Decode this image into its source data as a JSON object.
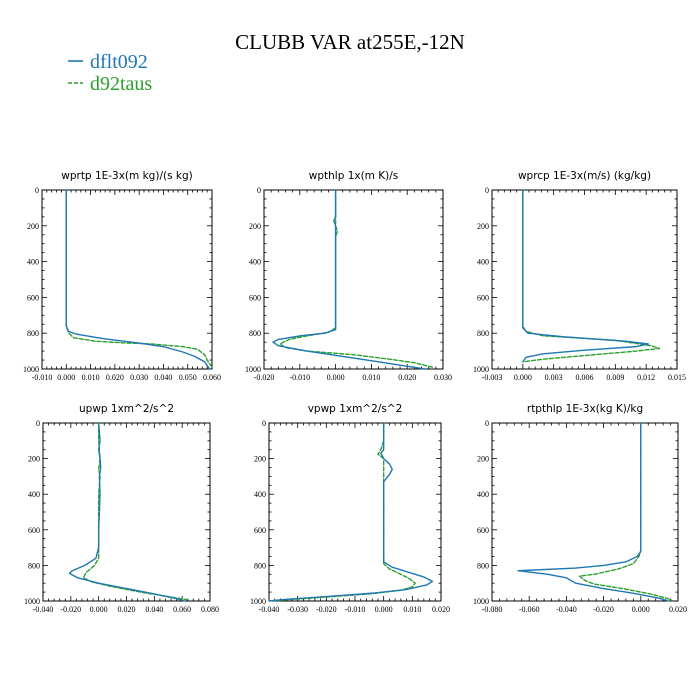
{
  "chart_data": {
    "type": "line",
    "title": "CLUBB VAR at255E,-12N",
    "legend": {
      "placement": "top-left",
      "entries": [
        {
          "name": "dflt092",
          "color": "#1f77b4",
          "style": "solid"
        },
        {
          "name": "d92taus",
          "color": "#2ca02c",
          "style": "dashed"
        }
      ]
    },
    "grid": false,
    "panels": [
      {
        "title": "wprtp  1E-3x(m kg)/(s kg)",
        "xlim": [
          -0.01,
          0.06
        ],
        "ylim": [
          1000,
          0
        ],
        "xticks": [
          "-0.010",
          "0.000",
          "0.010",
          "0.020",
          "0.030",
          "0.040",
          "0.050",
          "0.060"
        ],
        "yticks": [
          "0",
          "200",
          "400",
          "600",
          "800",
          "1000"
        ],
        "series": [
          {
            "name": "dflt092",
            "points": [
              [
                0,
                0
              ],
              [
                0,
                200
              ],
              [
                0,
                400
              ],
              [
                0,
                600
              ],
              [
                0,
                760
              ],
              [
                0.001,
                790
              ],
              [
                0.004,
                805
              ],
              [
                0.015,
                830
              ],
              [
                0.03,
                855
              ],
              [
                0.04,
                875
              ],
              [
                0.048,
                905
              ],
              [
                0.053,
                930
              ],
              [
                0.057,
                960
              ],
              [
                0.059,
                1000
              ]
            ]
          },
          {
            "name": "d92taus",
            "points": [
              [
                0,
                0
              ],
              [
                0,
                200
              ],
              [
                0,
                400
              ],
              [
                0,
                600
              ],
              [
                0,
                760
              ],
              [
                0.001,
                800
              ],
              [
                0.003,
                825
              ],
              [
                0.012,
                845
              ],
              [
                0.025,
                855
              ],
              [
                0.035,
                860
              ],
              [
                0.048,
                875
              ],
              [
                0.054,
                890
              ],
              [
                0.057,
                920
              ],
              [
                0.058,
                950
              ],
              [
                0.06,
                990
              ]
            ]
          }
        ]
      },
      {
        "title": "wpthlp  1x(m K)/s",
        "xlim": [
          -0.02,
          0.03
        ],
        "ylim": [
          1000,
          0
        ],
        "xticks": [
          "-0.020",
          "-0.010",
          "0.000",
          "0.010",
          "0.020",
          "0.030"
        ],
        "yticks": [
          "0",
          "200",
          "400",
          "600",
          "800",
          "1000"
        ],
        "series": [
          {
            "name": "dflt092",
            "points": [
              [
                0,
                0
              ],
              [
                0,
                150
              ],
              [
                -0.0005,
                170
              ],
              [
                0,
                200
              ],
              [
                0,
                250
              ],
              [
                0,
                400
              ],
              [
                0,
                600
              ],
              [
                0,
                780
              ],
              [
                -0.003,
                800
              ],
              [
                -0.01,
                815
              ],
              [
                -0.016,
                835
              ],
              [
                -0.0175,
                850
              ],
              [
                -0.016,
                870
              ],
              [
                -0.008,
                900
              ],
              [
                0.002,
                930
              ],
              [
                0.012,
                960
              ],
              [
                0.02,
                985
              ],
              [
                0.025,
                1000
              ]
            ]
          },
          {
            "name": "d92taus",
            "points": [
              [
                0,
                0
              ],
              [
                0,
                200
              ],
              [
                0.0005,
                230
              ],
              [
                0,
                260
              ],
              [
                0,
                400
              ],
              [
                0,
                600
              ],
              [
                0,
                770
              ],
              [
                -0.002,
                795
              ],
              [
                -0.008,
                815
              ],
              [
                -0.013,
                835
              ],
              [
                -0.0155,
                860
              ],
              [
                -0.014,
                880
              ],
              [
                -0.008,
                900
              ],
              [
                0.005,
                920
              ],
              [
                0.015,
                945
              ],
              [
                0.022,
                965
              ],
              [
                0.027,
                990
              ]
            ]
          }
        ]
      },
      {
        "title": "wprcp  1E-3x(m/s) (kg/kg)",
        "xlim": [
          -0.003,
          0.015
        ],
        "ylim": [
          1000,
          0
        ],
        "xticks": [
          "-0.003",
          "0.000",
          "0.003",
          "0.006",
          "0.009",
          "0.012",
          "0.015"
        ],
        "yticks": [
          "0",
          "200",
          "400",
          "600",
          "800",
          "1000"
        ],
        "series": [
          {
            "name": "dflt092",
            "points": [
              [
                0,
                0
              ],
              [
                0,
                200
              ],
              [
                0,
                400
              ],
              [
                0,
                600
              ],
              [
                0,
                770
              ],
              [
                0.0005,
                800
              ],
              [
                0.004,
                820
              ],
              [
                0.01,
                845
              ],
              [
                0.0122,
                860
              ],
              [
                0.011,
                875
              ],
              [
                0.006,
                895
              ],
              [
                0.002,
                915
              ],
              [
                0.0003,
                935
              ],
              [
                0,
                960
              ]
            ]
          },
          {
            "name": "d92taus",
            "points": [
              [
                0,
                0
              ],
              [
                0,
                200
              ],
              [
                0,
                400
              ],
              [
                0,
                600
              ],
              [
                0,
                760
              ],
              [
                0.0003,
                790
              ],
              [
                0.002,
                815
              ],
              [
                0.009,
                840
              ],
              [
                0.0125,
                870
              ],
              [
                0.0133,
                885
              ],
              [
                0.011,
                900
              ],
              [
                0.006,
                925
              ],
              [
                0.002,
                945
              ],
              [
                0,
                960
              ]
            ]
          }
        ]
      },
      {
        "title": "upwp   1xm^2/s^2",
        "xlim": [
          -0.04,
          0.08
        ],
        "ylim": [
          1000,
          0
        ],
        "xticks": [
          "-0.040",
          "-0.020",
          "0.000",
          "0.020",
          "0.040",
          "0.060",
          "0.080"
        ],
        "yticks": [
          "0",
          "200",
          "400",
          "600",
          "800",
          "1000"
        ],
        "series": [
          {
            "name": "dflt092",
            "points": [
              [
                0,
                0
              ],
              [
                0.001,
                100
              ],
              [
                0,
                150
              ],
              [
                0.001,
                200
              ],
              [
                0.0015,
                250
              ],
              [
                0.0005,
                300
              ],
              [
                0.001,
                400
              ],
              [
                0,
                600
              ],
              [
                0,
                700
              ],
              [
                -0.002,
                760
              ],
              [
                -0.01,
                800
              ],
              [
                -0.019,
                830
              ],
              [
                -0.021,
                845
              ],
              [
                -0.015,
                870
              ],
              [
                0,
                900
              ],
              [
                0.02,
                930
              ],
              [
                0.04,
                960
              ],
              [
                0.055,
                985
              ],
              [
                0.062,
                1000
              ]
            ]
          },
          {
            "name": "d92taus",
            "points": [
              [
                0,
                0
              ],
              [
                0,
                100
              ],
              [
                0.001,
                200
              ],
              [
                0,
                260
              ],
              [
                0.001,
                300
              ],
              [
                0,
                400
              ],
              [
                0,
                600
              ],
              [
                0,
                760
              ],
              [
                -0.003,
                800
              ],
              [
                -0.009,
                840
              ],
              [
                -0.011,
                870
              ],
              [
                -0.004,
                895
              ],
              [
                0.01,
                920
              ],
              [
                0.03,
                950
              ],
              [
                0.05,
                975
              ],
              [
                0.065,
                995
              ]
            ]
          }
        ]
      },
      {
        "title": "vpwp   1xm^2/s^2",
        "xlim": [
          -0.04,
          0.02
        ],
        "ylim": [
          1000,
          0
        ],
        "xticks": [
          "-0.040",
          "-0.030",
          "-0.020",
          "-0.010",
          "0.000",
          "0.010",
          "0.020"
        ],
        "yticks": [
          "0",
          "200",
          "400",
          "600",
          "800",
          "1000"
        ],
        "series": [
          {
            "name": "dflt092",
            "points": [
              [
                0,
                0
              ],
              [
                0,
                100
              ],
              [
                0,
                150
              ],
              [
                -0.001,
                170
              ],
              [
                0,
                200
              ],
              [
                0.002,
                230
              ],
              [
                0.003,
                260
              ],
              [
                0.002,
                290
              ],
              [
                0,
                330
              ],
              [
                0,
                400
              ],
              [
                0,
                600
              ],
              [
                0,
                780
              ],
              [
                0.003,
                810
              ],
              [
                0.009,
                840
              ],
              [
                0.014,
                865
              ],
              [
                0.017,
                890
              ],
              [
                0.015,
                910
              ],
              [
                0.008,
                935
              ],
              [
                -0.003,
                955
              ],
              [
                -0.02,
                975
              ],
              [
                -0.035,
                992
              ],
              [
                -0.04,
                1000
              ]
            ]
          },
          {
            "name": "d92taus",
            "points": [
              [
                0,
                0
              ],
              [
                0,
                100
              ],
              [
                -0.001,
                150
              ],
              [
                -0.002,
                175
              ],
              [
                0,
                200
              ],
              [
                0,
                250
              ],
              [
                0,
                300
              ],
              [
                0,
                400
              ],
              [
                0,
                600
              ],
              [
                0,
                790
              ],
              [
                0.002,
                820
              ],
              [
                0.006,
                850
              ],
              [
                0.009,
                875
              ],
              [
                0.011,
                900
              ],
              [
                0.01,
                920
              ],
              [
                0.006,
                940
              ],
              [
                -0.005,
                960
              ],
              [
                -0.022,
                980
              ],
              [
                -0.038,
                998
              ]
            ]
          }
        ]
      },
      {
        "title": "rtpthlp  1E-3x(kg K)/kg",
        "xlim": [
          -0.08,
          0.02
        ],
        "ylim": [
          1000,
          0
        ],
        "xticks": [
          "-0.080",
          "-0.060",
          "-0.040",
          "-0.020",
          "0.000",
          "0.020"
        ],
        "yticks": [
          "0",
          "200",
          "400",
          "600",
          "800",
          "1000"
        ],
        "series": [
          {
            "name": "dflt092",
            "points": [
              [
                0,
                0
              ],
              [
                0,
                200
              ],
              [
                0,
                400
              ],
              [
                0,
                600
              ],
              [
                0,
                720
              ],
              [
                -0.002,
                750
              ],
              [
                -0.008,
                780
              ],
              [
                -0.02,
                800
              ],
              [
                -0.035,
                815
              ],
              [
                -0.066,
                830
              ],
              [
                -0.05,
                850
              ],
              [
                -0.04,
                870
              ],
              [
                -0.035,
                900
              ],
              [
                -0.02,
                930
              ],
              [
                -0.002,
                960
              ],
              [
                0.01,
                985
              ],
              [
                0.015,
                1000
              ]
            ]
          },
          {
            "name": "d92taus",
            "points": [
              [
                0,
                0
              ],
              [
                0,
                200
              ],
              [
                0,
                400
              ],
              [
                0,
                600
              ],
              [
                0,
                720
              ],
              [
                -0.001,
                750
              ],
              [
                -0.004,
                790
              ],
              [
                -0.012,
                820
              ],
              [
                -0.025,
                850
              ],
              [
                -0.033,
                860
              ],
              [
                -0.03,
                885
              ],
              [
                -0.025,
                905
              ],
              [
                -0.01,
                930
              ],
              [
                0.005,
                960
              ],
              [
                0.014,
                985
              ],
              [
                0.017,
                998
              ]
            ]
          }
        ]
      }
    ]
  }
}
